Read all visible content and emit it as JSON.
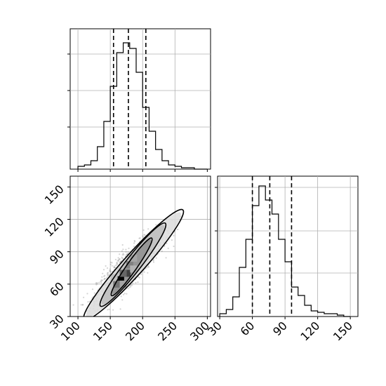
{
  "chart_data": [
    {
      "panel": "histogram-x",
      "type": "bar",
      "xlim": [
        88,
        305
      ],
      "ylim": [
        0,
        1
      ],
      "grid": true,
      "bin_edges": [
        100,
        110,
        120,
        130,
        140,
        150,
        160,
        170,
        180,
        190,
        200,
        210,
        220,
        230,
        240,
        250,
        260,
        270,
        280,
        290,
        300
      ],
      "counts": [
        0.02,
        0.03,
        0.06,
        0.16,
        0.34,
        0.59,
        0.83,
        0.9,
        0.86,
        0.69,
        0.44,
        0.27,
        0.14,
        0.06,
        0.03,
        0.02,
        0.01,
        0.01,
        0,
        0
      ],
      "quantile_lines": [
        155,
        178,
        205
      ]
    },
    {
      "panel": "scatter-contour",
      "type": "scatter",
      "xlabel": "",
      "ylabel": "",
      "xlim": [
        88,
        305
      ],
      "ylim": [
        30,
        160
      ],
      "xticks": [
        "100",
        "150",
        "200",
        "250",
        "300"
      ],
      "yticks": [
        "30",
        "60",
        "90",
        "120",
        "150"
      ],
      "grid": true,
      "mean": [
        180,
        76
      ],
      "std": [
        25,
        15
      ],
      "correlation": 0.85,
      "contour_levels": [
        {
          "rx": 50,
          "ry": 7,
          "angle_deg": -55,
          "cx": 183,
          "cy": 76
        },
        {
          "rx": 75,
          "ry": 11,
          "angle_deg": -52,
          "cx": 185,
          "cy": 78
        },
        {
          "rx": 105,
          "ry": 15,
          "angle_deg": -48,
          "cx": 186,
          "cy": 78
        }
      ],
      "density_cells": [
        {
          "x": 166,
          "y": 64,
          "v": 1.0
        },
        {
          "x": 176,
          "y": 70,
          "v": 0.75
        },
        {
          "x": 170,
          "y": 70,
          "v": 0.6
        },
        {
          "x": 180,
          "y": 78,
          "v": 0.5
        },
        {
          "x": 160,
          "y": 60,
          "v": 0.55
        },
        {
          "x": 186,
          "y": 84,
          "v": 0.35
        },
        {
          "x": 186,
          "y": 74,
          "v": 0.3
        },
        {
          "x": 170,
          "y": 60,
          "v": 0.35
        },
        {
          "x": 156,
          "y": 66,
          "v": 0.25
        }
      ]
    },
    {
      "panel": "histogram-y",
      "type": "bar",
      "xlim": [
        28,
        157
      ],
      "ylim": [
        0,
        1
      ],
      "xticks": [
        "30",
        "60",
        "90",
        "120",
        "150"
      ],
      "grid": true,
      "bin_edges": [
        30,
        36,
        42,
        48,
        54,
        60,
        66,
        72,
        78,
        84,
        90,
        96,
        102,
        108,
        114,
        120,
        126,
        132,
        138,
        144,
        150
      ],
      "counts": [
        0.02,
        0.05,
        0.14,
        0.35,
        0.55,
        0.79,
        0.93,
        0.83,
        0.73,
        0.55,
        0.39,
        0.21,
        0.15,
        0.08,
        0.04,
        0.03,
        0.02,
        0.02,
        0.01,
        0
      ],
      "quantile_lines": [
        60,
        76,
        96
      ]
    }
  ]
}
